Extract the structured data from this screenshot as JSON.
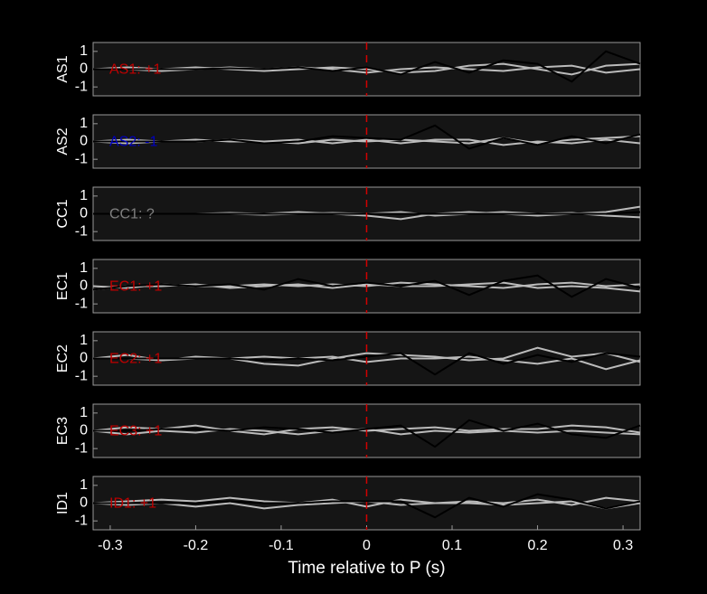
{
  "chart_data": [
    {
      "type": "line",
      "ylabel": "AS1",
      "annotation": "AS1: +1",
      "annotation_color": "#c00000",
      "xlim": [
        -0.32,
        0.32
      ],
      "ylim": [
        -1.5,
        1.5
      ],
      "yticks": [
        1,
        0,
        -1
      ],
      "vline": 0,
      "vline_color": "#d00000",
      "x": [
        -0.32,
        -0.28,
        -0.24,
        -0.2,
        -0.16,
        -0.12,
        -0.08,
        -0.04,
        0,
        0.04,
        0.08,
        0.12,
        0.16,
        0.2,
        0.24,
        0.28,
        0.32
      ],
      "series": [
        {
          "color": "#bbbbbb",
          "values": [
            0,
            0.1,
            0,
            0.1,
            0,
            -0.1,
            0,
            0.1,
            0,
            -0.2,
            -0.1,
            0.2,
            0.3,
            0,
            -0.3,
            0.2,
            0.3
          ]
        },
        {
          "color": "#bbbbbb",
          "values": [
            0,
            0,
            -0.1,
            0,
            0.1,
            0,
            0.1,
            0,
            -0.2,
            0,
            0.1,
            0,
            -0.1,
            0.1,
            0.2,
            -0.2,
            0
          ]
        },
        {
          "color": "#000000",
          "values": [
            0,
            0,
            0,
            0,
            0.05,
            0,
            0.1,
            -0.1,
            0.1,
            -0.3,
            0.4,
            -0.2,
            0.5,
            0.3,
            -0.7,
            1.0,
            0.3
          ]
        }
      ]
    },
    {
      "type": "line",
      "ylabel": "AS2",
      "annotation": "AS2: -1",
      "annotation_color": "#0000c0",
      "xlim": [
        -0.32,
        0.32
      ],
      "ylim": [
        -1.5,
        1.5
      ],
      "yticks": [
        1,
        0,
        -1
      ],
      "vline": 0,
      "vline_color": "#d00000",
      "x": [
        -0.32,
        -0.28,
        -0.24,
        -0.2,
        -0.16,
        -0.12,
        -0.08,
        -0.04,
        0,
        0.04,
        0.08,
        0.12,
        0.16,
        0.2,
        0.24,
        0.28,
        0.32
      ],
      "series": [
        {
          "color": "#bbbbbb",
          "values": [
            0,
            0.1,
            0,
            0.1,
            0,
            0,
            -0.1,
            0.1,
            0,
            0.1,
            0,
            -0.1,
            0.2,
            -0.1,
            0.1,
            0.2,
            0.3
          ]
        },
        {
          "color": "#bbbbbb",
          "values": [
            0,
            -0.1,
            0,
            0,
            0.1,
            0,
            0.1,
            -0.1,
            0.1,
            -0.1,
            0.1,
            0.1,
            -0.2,
            0,
            -0.1,
            0.1,
            -0.1
          ]
        },
        {
          "color": "#000000",
          "values": [
            0,
            0,
            0,
            0,
            0.1,
            -0.1,
            0,
            0.3,
            0.2,
            0.1,
            0.9,
            -0.4,
            0.2,
            -0.2,
            0.3,
            -0.1,
            0.4
          ]
        }
      ]
    },
    {
      "type": "line",
      "ylabel": "CC1",
      "annotation": "CC1: ?",
      "annotation_color": "#808080",
      "xlim": [
        -0.32,
        0.32
      ],
      "ylim": [
        -1.5,
        1.5
      ],
      "yticks": [
        1,
        0,
        -1
      ],
      "vline": 0,
      "vline_color": "#d00000",
      "x": [
        -0.32,
        -0.28,
        -0.24,
        -0.2,
        -0.16,
        -0.12,
        -0.08,
        -0.04,
        0,
        0.04,
        0.08,
        0.12,
        0.16,
        0.2,
        0.24,
        0.28,
        0.32
      ],
      "series": [
        {
          "color": "#bbbbbb",
          "values": [
            0,
            0,
            0,
            0,
            0.05,
            0,
            0.1,
            0,
            -0.1,
            -0.3,
            0,
            0.1,
            0,
            -0.1,
            0,
            0.1,
            0.4
          ]
        },
        {
          "color": "#bbbbbb",
          "values": [
            0,
            0,
            0,
            0,
            0,
            -0.05,
            0,
            0.05,
            0,
            0.1,
            -0.1,
            0,
            0.1,
            0,
            0.05,
            -0.1,
            -0.2
          ]
        },
        {
          "color": "#000000",
          "values": [
            0,
            0,
            0,
            0,
            0,
            0,
            0,
            0,
            0,
            0,
            0,
            0,
            0,
            0,
            0,
            0,
            0.1
          ]
        }
      ]
    },
    {
      "type": "line",
      "ylabel": "EC1",
      "annotation": "EC1: +1",
      "annotation_color": "#c00000",
      "xlim": [
        -0.32,
        0.32
      ],
      "ylim": [
        -1.5,
        1.5
      ],
      "yticks": [
        1,
        0,
        -1
      ],
      "vline": 0,
      "vline_color": "#d00000",
      "x": [
        -0.32,
        -0.28,
        -0.24,
        -0.2,
        -0.16,
        -0.12,
        -0.08,
        -0.04,
        0,
        0.04,
        0.08,
        0.12,
        0.16,
        0.2,
        0.24,
        0.28,
        0.32
      ],
      "series": [
        {
          "color": "#bbbbbb",
          "values": [
            0,
            -0.1,
            0.1,
            0,
            0,
            0.1,
            0,
            0.1,
            0,
            0.2,
            0.1,
            0,
            -0.1,
            0.1,
            0.2,
            0,
            0.1
          ]
        },
        {
          "color": "#bbbbbb",
          "values": [
            -0.2,
            0,
            0,
            0.1,
            -0.1,
            0,
            0.1,
            -0.1,
            0.1,
            0,
            0,
            0.1,
            0.2,
            -0.1,
            0,
            -0.1,
            -0.3
          ]
        },
        {
          "color": "#000000",
          "values": [
            -0.2,
            0,
            0.1,
            0,
            0.1,
            -0.2,
            0.4,
            0,
            0.2,
            0,
            0.3,
            -0.5,
            0.3,
            0.6,
            -0.6,
            0.4,
            -0.1
          ]
        }
      ]
    },
    {
      "type": "line",
      "ylabel": "EC2",
      "annotation": "EC2: +1",
      "annotation_color": "#c00000",
      "xlim": [
        -0.32,
        0.32
      ],
      "ylim": [
        -1.5,
        1.5
      ],
      "yticks": [
        1,
        0,
        -1
      ],
      "vline": 0,
      "vline_color": "#d00000",
      "x": [
        -0.32,
        -0.28,
        -0.24,
        -0.2,
        -0.16,
        -0.12,
        -0.08,
        -0.04,
        0,
        0.04,
        0.08,
        0.12,
        0.16,
        0.2,
        0.24,
        0.28,
        0.32
      ],
      "series": [
        {
          "color": "#bbbbbb",
          "values": [
            0,
            0.2,
            -0.1,
            0,
            0,
            -0.3,
            -0.4,
            0,
            0.3,
            0.2,
            0.1,
            -0.1,
            0,
            0.6,
            0.1,
            0.3,
            -0.2
          ]
        },
        {
          "color": "#bbbbbb",
          "values": [
            0,
            0,
            -0.1,
            0.1,
            0,
            0.1,
            0,
            0.1,
            -0.2,
            0,
            0,
            0.1,
            -0.1,
            -0.3,
            0,
            -0.6,
            -0.1
          ]
        },
        {
          "color": "#000000",
          "values": [
            0,
            0,
            0,
            0,
            0,
            -0.1,
            0,
            -0.1,
            0.1,
            0.3,
            -0.9,
            0.3,
            -0.3,
            0.2,
            -0.2,
            0.3,
            0.1
          ]
        }
      ]
    },
    {
      "type": "line",
      "ylabel": "EC3",
      "annotation": "EC3: +1",
      "annotation_color": "#c00000",
      "xlim": [
        -0.32,
        0.32
      ],
      "ylim": [
        -1.5,
        1.5
      ],
      "yticks": [
        1,
        0,
        -1
      ],
      "vline": 0,
      "vline_color": "#d00000",
      "x": [
        -0.32,
        -0.28,
        -0.24,
        -0.2,
        -0.16,
        -0.12,
        -0.08,
        -0.04,
        0,
        0.04,
        0.08,
        0.12,
        0.16,
        0.2,
        0.24,
        0.28,
        0.32
      ],
      "series": [
        {
          "color": "#bbbbbb",
          "values": [
            0,
            0.2,
            0.1,
            0.3,
            0,
            -0.2,
            0.1,
            0.2,
            0,
            0.1,
            0.2,
            0,
            0.1,
            0.1,
            0.3,
            0.2,
            -0.1
          ]
        },
        {
          "color": "#bbbbbb",
          "values": [
            0,
            -0.2,
            0,
            -0.1,
            0.1,
            0,
            -0.2,
            0,
            0.1,
            -0.2,
            0,
            -0.1,
            0,
            -0.1,
            0,
            -0.1,
            -0.2
          ]
        },
        {
          "color": "#000000",
          "values": [
            0,
            0,
            0.1,
            0.1,
            0,
            0.2,
            0.1,
            -0.1,
            0.1,
            0.3,
            -0.9,
            0.6,
            0,
            0.4,
            -0.2,
            -0.4,
            0.3
          ]
        }
      ]
    },
    {
      "type": "line",
      "ylabel": "ID1",
      "annotation": "ID1: +1",
      "annotation_color": "#c00000",
      "xlim": [
        -0.32,
        0.32
      ],
      "ylim": [
        -1.5,
        1.5
      ],
      "yticks": [
        1,
        0,
        -1
      ],
      "vline": 0,
      "vline_color": "#d00000",
      "xlabel": "Time relative to P (s)",
      "xticks": [
        -0.3,
        -0.2,
        -0.1,
        0,
        0.1,
        0.2,
        0.3
      ],
      "x": [
        -0.32,
        -0.28,
        -0.24,
        -0.2,
        -0.16,
        -0.12,
        -0.08,
        -0.04,
        0,
        0.04,
        0.08,
        0.12,
        0.16,
        0.2,
        0.24,
        0.28,
        0.32
      ],
      "series": [
        {
          "color": "#bbbbbb",
          "values": [
            0,
            0.1,
            0.2,
            0.1,
            0.3,
            0.1,
            0,
            0.2,
            -0.2,
            0.2,
            0,
            0.1,
            0,
            0.2,
            -0.1,
            0.3,
            0.1
          ]
        },
        {
          "color": "#bbbbbb",
          "values": [
            0,
            -0.1,
            0,
            -0.2,
            0,
            -0.3,
            -0.1,
            0,
            0.1,
            -0.1,
            0,
            0,
            -0.1,
            0,
            0.1,
            -0.3,
            0
          ]
        },
        {
          "color": "#000000",
          "values": [
            0,
            0,
            0,
            0,
            0.1,
            0,
            0,
            0.1,
            0.1,
            0.1,
            -0.8,
            0.3,
            -0.2,
            0.5,
            0.2,
            -0.3,
            0.1
          ]
        }
      ]
    }
  ]
}
